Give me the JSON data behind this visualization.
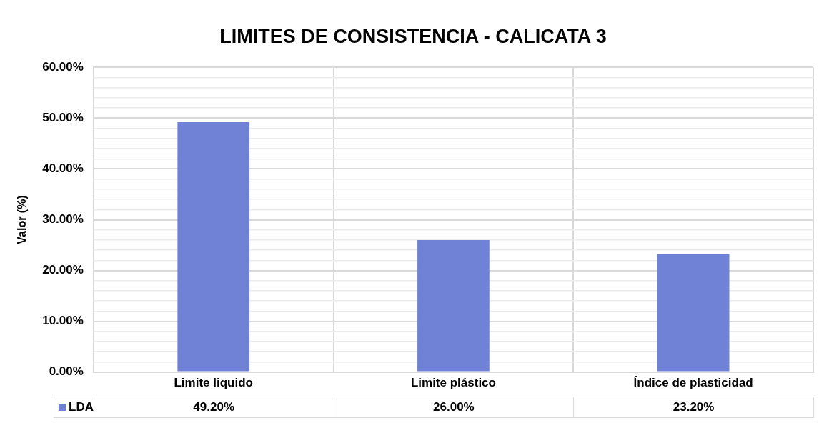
{
  "chart_data": {
    "type": "bar",
    "title": "LIMITES DE CONSISTENCIA - CALICATA 3",
    "ylabel": "Valor (%)",
    "categories": [
      "Limite liquido",
      "Limite plástico",
      "Índice de plasticidad"
    ],
    "series": [
      {
        "name": "LDA",
        "color": "#6f82d6",
        "values": [
          49.2,
          26.0,
          23.2
        ],
        "value_labels": [
          "49.20%",
          "26.00%",
          "23.20%"
        ]
      }
    ],
    "ylim": [
      0,
      60
    ],
    "yticks": [
      {
        "value": 0,
        "label": "0.00%"
      },
      {
        "value": 2,
        "label": null
      },
      {
        "value": 4,
        "label": null
      },
      {
        "value": 6,
        "label": null
      },
      {
        "value": 8,
        "label": null
      },
      {
        "value": 10,
        "label": "10.00%"
      },
      {
        "value": 12,
        "label": null
      },
      {
        "value": 14,
        "label": null
      },
      {
        "value": 16,
        "label": null
      },
      {
        "value": 18,
        "label": null
      },
      {
        "value": 20,
        "label": "20.00%"
      },
      {
        "value": 22,
        "label": null
      },
      {
        "value": 24,
        "label": null
      },
      {
        "value": 26,
        "label": null
      },
      {
        "value": 28,
        "label": null
      },
      {
        "value": 30,
        "label": "30.00%"
      },
      {
        "value": 32,
        "label": null
      },
      {
        "value": 34,
        "label": null
      },
      {
        "value": 36,
        "label": null
      },
      {
        "value": 38,
        "label": null
      },
      {
        "value": 40,
        "label": "40.00%"
      },
      {
        "value": 42,
        "label": null
      },
      {
        "value": 44,
        "label": null
      },
      {
        "value": 46,
        "label": null
      },
      {
        "value": 48,
        "label": null
      },
      {
        "value": 50,
        "label": "50.00%"
      },
      {
        "value": 52,
        "label": null
      },
      {
        "value": 54,
        "label": null
      },
      {
        "value": 56,
        "label": null
      },
      {
        "value": 58,
        "label": null
      },
      {
        "value": 60,
        "label": "60.00%"
      }
    ],
    "grid": true,
    "legend": "bottom"
  }
}
